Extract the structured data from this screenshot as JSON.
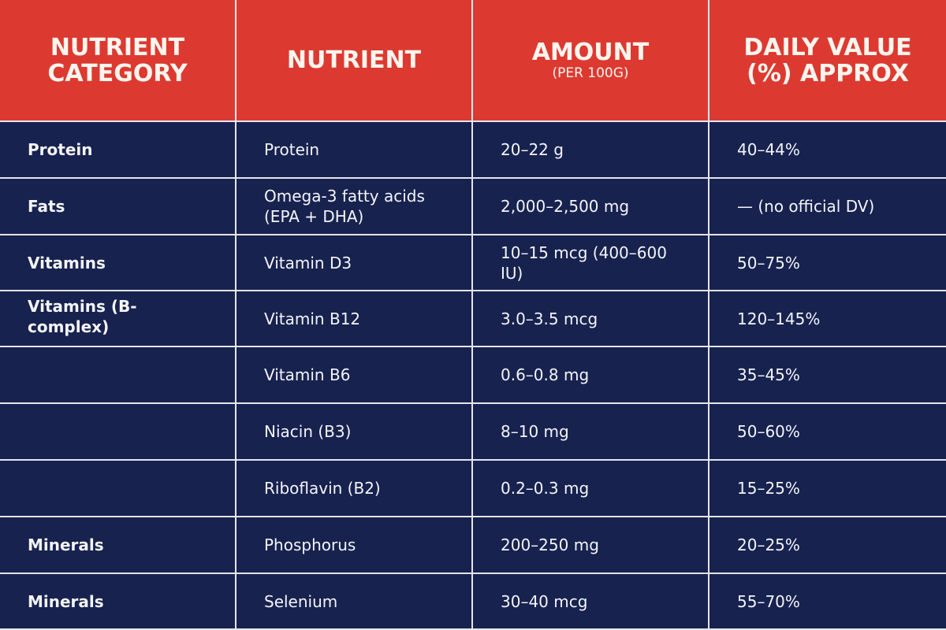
{
  "header": {
    "col1": "NUTRIENT CATEGORY",
    "col2": "NUTRIENT",
    "col3": "AMOUNT",
    "col3_sub": "(PER 100G)",
    "col4": "DAILY VALUE (%) APPROX"
  },
  "rows": [
    {
      "category": "Protein",
      "nutrient": "Protein",
      "amount": "20–22 g",
      "dv": "40–44%"
    },
    {
      "category": "Fats",
      "nutrient": "Omega-3 fatty acids (EPA + DHA)",
      "amount": "2,000–2,500 mg",
      "dv": "— (no official DV)"
    },
    {
      "category": "Vitamins",
      "nutrient": "Vitamin D3",
      "amount": "10–15 mcg (400–600 IU)",
      "dv": "50–75%"
    },
    {
      "category": "Vitamins (B-complex)",
      "nutrient": "Vitamin B12",
      "amount": "3.0–3.5 mcg",
      "dv": "120–145%"
    },
    {
      "category": "",
      "nutrient": "Vitamin B6",
      "amount": "0.6–0.8 mg",
      "dv": "35–45%"
    },
    {
      "category": "",
      "nutrient": "Niacin (B3)",
      "amount": "8–10 mg",
      "dv": "50–60%"
    },
    {
      "category": "",
      "nutrient": "Riboflavin (B2)",
      "amount": "0.2–0.3 mg",
      "dv": "15–25%"
    },
    {
      "category": "Minerals",
      "nutrient": "Phosphorus",
      "amount": "200–250 mg",
      "dv": "20–25%"
    },
    {
      "category": "Minerals",
      "nutrient": "Selenium",
      "amount": "30–40 mcg",
      "dv": "55–70%"
    }
  ]
}
